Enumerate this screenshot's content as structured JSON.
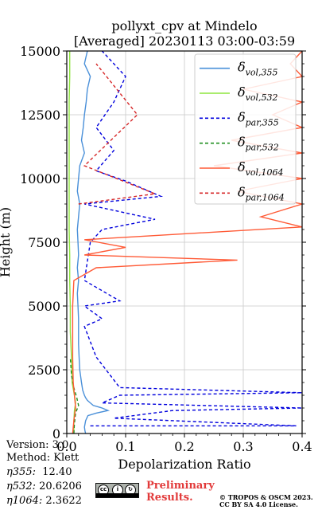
{
  "chart_data": {
    "type": "line",
    "title": "pollyxt_cpv at Mindelo",
    "subtitle": "[Averaged] 20230113 03:00-03:59",
    "xlabel": "Depolarization Ratio",
    "ylabel": "Height (m)",
    "xlim": [
      0,
      0.4
    ],
    "ylim": [
      0,
      15000
    ],
    "x_ticks": [
      "0.0",
      "0.1",
      "0.2",
      "0.3",
      "0.4"
    ],
    "y_ticks": [
      "0",
      "2500",
      "5000",
      "7500",
      "10000",
      "12500",
      "15000"
    ],
    "grid": true,
    "legend_position": "top-right",
    "series": [
      {
        "name": "δvol,355",
        "label_main": "δ",
        "label_sub": "vol,355",
        "color": "#4a90d9",
        "dash": "solid",
        "points": [
          [
            0.032,
            0
          ],
          [
            0.031,
            100
          ],
          [
            0.03,
            250
          ],
          [
            0.032,
            500
          ],
          [
            0.036,
            700
          ],
          [
            0.05,
            800
          ],
          [
            0.07,
            900
          ],
          [
            0.06,
            1000
          ],
          [
            0.045,
            1100
          ],
          [
            0.04,
            1200
          ],
          [
            0.035,
            1300
          ],
          [
            0.032,
            1400
          ],
          [
            0.03,
            1500
          ],
          [
            0.027,
            1700
          ],
          [
            0.025,
            2000
          ],
          [
            0.022,
            2500
          ],
          [
            0.021,
            3000
          ],
          [
            0.02,
            3500
          ],
          [
            0.02,
            4000
          ],
          [
            0.02,
            4500
          ],
          [
            0.019,
            5000
          ],
          [
            0.018,
            5500
          ],
          [
            0.02,
            6000
          ],
          [
            0.018,
            6500
          ],
          [
            0.02,
            7000
          ],
          [
            0.019,
            7500
          ],
          [
            0.018,
            8000
          ],
          [
            0.02,
            8500
          ],
          [
            0.022,
            9000
          ],
          [
            0.018,
            9500
          ],
          [
            0.02,
            10000
          ],
          [
            0.022,
            10500
          ],
          [
            0.03,
            11000
          ],
          [
            0.025,
            11500
          ],
          [
            0.028,
            12000
          ],
          [
            0.03,
            12500
          ],
          [
            0.033,
            13000
          ],
          [
            0.035,
            13500
          ],
          [
            0.04,
            14000
          ],
          [
            0.03,
            14500
          ],
          [
            0.035,
            15000
          ]
        ]
      },
      {
        "name": "δvol,532",
        "label_main": "δ",
        "label_sub": "vol,532",
        "color": "#8ee53f",
        "dash": "solid",
        "points": [
          [
            0.012,
            0
          ],
          [
            0.012,
            500
          ],
          [
            0.013,
            900
          ],
          [
            0.015,
            1200
          ],
          [
            0.013,
            1500
          ],
          [
            0.009,
            2000
          ],
          [
            0.008,
            3000
          ],
          [
            0.006,
            4000
          ],
          [
            0.006,
            5000
          ],
          [
            0.005,
            6000
          ],
          [
            0.005,
            7000
          ],
          [
            0.004,
            8000
          ],
          [
            0.004,
            9000
          ],
          [
            0.004,
            10000
          ],
          [
            0.004,
            11000
          ],
          [
            0.004,
            12000
          ],
          [
            0.004,
            13000
          ],
          [
            0.005,
            14000
          ],
          [
            0.005,
            15000
          ]
        ]
      },
      {
        "name": "δpar,355",
        "label_main": "δ",
        "label_sub": "par,355",
        "color": "#0000dd",
        "dash": "4,3",
        "points": [
          [
            0.04,
            300
          ],
          [
            0.39,
            300
          ],
          [
            0.08,
            600
          ],
          [
            0.18,
            900
          ],
          [
            0.4,
            1000
          ],
          [
            0.06,
            1200
          ],
          [
            0.09,
            1500
          ],
          [
            0.4,
            1600
          ],
          [
            0.09,
            1800
          ],
          [
            0.05,
            3000
          ],
          [
            0.03,
            4200
          ],
          [
            0.06,
            4500
          ],
          [
            0.03,
            5000
          ],
          [
            0.09,
            5200
          ],
          [
            0.03,
            6000
          ],
          [
            0.04,
            7500
          ],
          [
            0.06,
            8000
          ],
          [
            0.15,
            8400
          ],
          [
            0.03,
            9000
          ],
          [
            0.16,
            9300
          ],
          [
            0.1,
            9900
          ],
          [
            0.05,
            10300
          ],
          [
            0.08,
            11100
          ],
          [
            0.05,
            12000
          ],
          [
            0.08,
            13000
          ],
          [
            0.1,
            14000
          ],
          [
            0.06,
            15000
          ]
        ]
      },
      {
        "name": "δpar,532",
        "label_main": "δ",
        "label_sub": "par,532",
        "color": "#1f8f1f",
        "dash": "4,3",
        "points": [
          [
            0.012,
            0
          ],
          [
            0.013,
            400
          ],
          [
            0.015,
            800
          ],
          [
            0.02,
            1100
          ],
          [
            0.017,
            1400
          ],
          [
            0.012,
            1800
          ],
          [
            0.008,
            2300
          ],
          [
            0.006,
            3000
          ]
        ]
      },
      {
        "name": "δvol,1064",
        "label_main": "δ",
        "label_sub": "vol,1064",
        "color": "#ff5a36",
        "dash": "solid",
        "points": [
          [
            0.01,
            0
          ],
          [
            0.012,
            500
          ],
          [
            0.015,
            1000
          ],
          [
            0.013,
            1500
          ],
          [
            0.011,
            2000
          ],
          [
            0.01,
            3000
          ],
          [
            0.01,
            4000
          ],
          [
            0.01,
            5000
          ],
          [
            0.012,
            6000
          ],
          [
            0.05,
            6500
          ],
          [
            0.29,
            6800
          ],
          [
            0.03,
            7000
          ],
          [
            0.1,
            7300
          ],
          [
            0.03,
            7600
          ],
          [
            0.4,
            8100
          ],
          [
            0.33,
            8500
          ],
          [
            0.4,
            9000
          ],
          [
            0.29,
            9500
          ],
          [
            0.4,
            10000
          ],
          [
            0.25,
            10500
          ],
          [
            0.4,
            11000
          ],
          [
            0.28,
            11500
          ],
          [
            0.4,
            12000
          ],
          [
            0.35,
            12500
          ],
          [
            0.4,
            13000
          ],
          [
            0.3,
            13500
          ],
          [
            0.4,
            14000
          ],
          [
            0.38,
            14500
          ],
          [
            0.4,
            15000
          ]
        ]
      },
      {
        "name": "δpar,1064",
        "label_main": "δ",
        "label_sub": "par,1064",
        "color": "#d62728",
        "dash": "4,3",
        "points": [
          [
            0.02,
            9000
          ],
          [
            0.15,
            9400
          ],
          [
            0.03,
            10500
          ],
          [
            0.12,
            12500
          ],
          [
            0.05,
            14500
          ]
        ]
      }
    ]
  },
  "info": {
    "version": "Version: 3.0",
    "method": "Method: Klett",
    "eta355_label": "η355:",
    "eta355_value": "12.40",
    "eta532_label": "η532:",
    "eta532_value": "20.6206",
    "eta1064_label": "η1064:",
    "eta1064_value": "2.3622"
  },
  "footer": {
    "preliminary_line1": "Preliminary",
    "preliminary_line2": "Results.",
    "copyright_line1": "© TROPOS & OSCM 2023.",
    "copyright_line2": "CC BY SA 4.0 License.",
    "cc_badge_text": "BY SA"
  }
}
